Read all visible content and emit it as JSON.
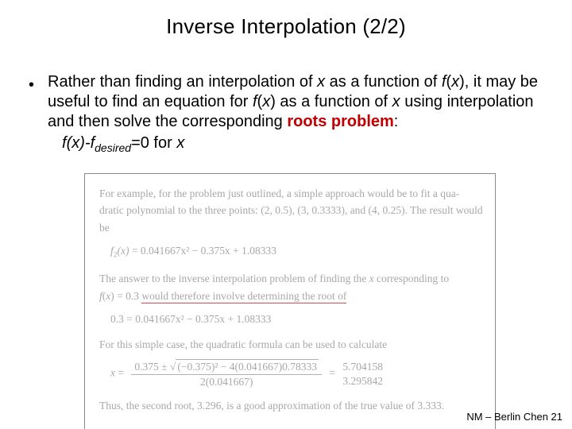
{
  "title": "Inverse Interpolation (2/2)",
  "bullet": {
    "pre": "Rather than finding an interpolation of ",
    "x1": "x",
    "mid1": " as a function of ",
    "fx1": "f",
    "parx1": "(x)",
    "mid2": ", it may be useful to find an equation for ",
    "fx2": "f",
    "parx2": "(x)",
    "mid3": " as a function of ",
    "x2": "x",
    "mid4": " using interpolation and then solve the corresponding ",
    "roots": "roots problem",
    "colon": ":"
  },
  "eq": {
    "lhs_f": "f",
    "lhs_px": "(x)",
    "dash": "-",
    "fdes": "f",
    "sub": "desired",
    "rest": "=0 for ",
    "x": "x"
  },
  "example": {
    "p1a": "For example, for the problem just outlined, a simple approach would be to fit a qua-",
    "p1b": "dratic polynomial to the three points: (2, 0.5), (3, 0.3333), and (4, 0.25). The result would be",
    "eq1_lhs": "f",
    "eq1_sub": "2",
    "eq1_px": "(x)",
    "eq1_rhs": " = 0.041667x² − 0.375x + 1.08333",
    "p2a": "The answer to the inverse interpolation problem of finding the ",
    "p2x": "x",
    "p2b": " corresponding to ",
    "p2c_f": "f",
    "p2c_px": "(x)",
    "p2d": " = 0.3 ",
    "p2hl": "would therefore involve determining the root of",
    "eq2": "0.3 = 0.041667x² − 0.375x + 1.08333",
    "p3": "For this simple case, the quadratic formula can be used to calculate",
    "eq3_x": "x",
    "eq3_eq": " = ",
    "eq3_num_a": "0.375 ± ",
    "eq3_rad": "√",
    "eq3_under": "(−0.375)² − 4(0.041667)0.78333",
    "eq3_den": "2(0.041667)",
    "eq3_eq2": " = ",
    "eq3_r1": "5.704158",
    "eq3_r2": "3.295842",
    "p4": "Thus, the second root, 3.296, is a good approximation of the true value of 3.333."
  },
  "footer": "NM – Berlin Chen 21"
}
